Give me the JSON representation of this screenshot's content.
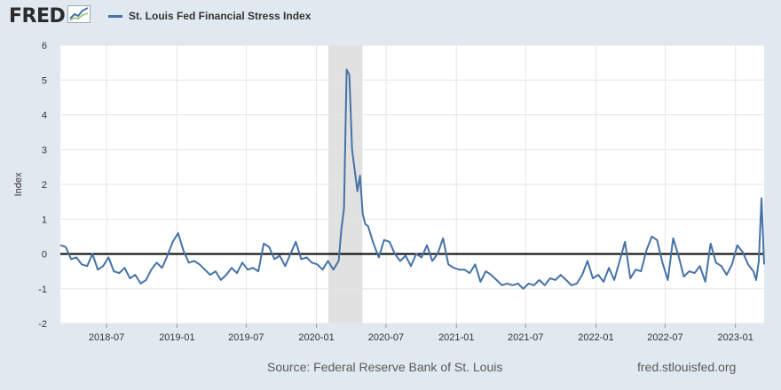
{
  "header": {
    "logo_text": "FRED",
    "logo_icon": "line-chart-icon",
    "legend_label": "St. Louis Fed Financial Stress Index"
  },
  "footer": {
    "source": "Source: Federal Reserve Bank of St. Louis",
    "url": "fred.stlouisfed.org"
  },
  "colors": {
    "background": "#e1e9f0",
    "plot_background": "#ffffff",
    "series": "#4572a7",
    "recession_shade": "#e1e1e1",
    "zero_line": "#000000"
  },
  "chart_data": {
    "type": "line",
    "title": "",
    "xlabel": "",
    "ylabel": "Index",
    "ylim": [
      -2,
      6
    ],
    "yticks": [
      "6",
      "5",
      "4",
      "3",
      "2",
      "1",
      "0",
      "-1",
      "-2"
    ],
    "xlim": [
      "2018-03-02",
      "2023-03-17"
    ],
    "xticks": [
      {
        "label": "2018-07",
        "date": "2018-07-01"
      },
      {
        "label": "2019-01",
        "date": "2019-01-01"
      },
      {
        "label": "2019-07",
        "date": "2019-07-01"
      },
      {
        "label": "2020-01",
        "date": "2020-01-01"
      },
      {
        "label": "2020-07",
        "date": "2020-07-01"
      },
      {
        "label": "2021-01",
        "date": "2021-01-01"
      },
      {
        "label": "2021-07",
        "date": "2021-07-01"
      },
      {
        "label": "2022-01",
        "date": "2022-01-01"
      },
      {
        "label": "2022-07",
        "date": "2022-07-01"
      },
      {
        "label": "2023-01",
        "date": "2023-01-01"
      }
    ],
    "grid": true,
    "reference_line": 0,
    "recession": {
      "start": "2020-02-01",
      "end": "2020-04-30"
    },
    "series": [
      {
        "name": "St. Louis Fed Financial Stress Index",
        "points": [
          [
            "2018-03-02",
            0.25
          ],
          [
            "2018-03-16",
            0.2
          ],
          [
            "2018-03-30",
            -0.15
          ],
          [
            "2018-04-13",
            -0.1
          ],
          [
            "2018-04-27",
            -0.3
          ],
          [
            "2018-05-11",
            -0.35
          ],
          [
            "2018-05-25",
            0.0
          ],
          [
            "2018-06-08",
            -0.45
          ],
          [
            "2018-06-22",
            -0.35
          ],
          [
            "2018-07-06",
            -0.1
          ],
          [
            "2018-07-20",
            -0.5
          ],
          [
            "2018-08-03",
            -0.55
          ],
          [
            "2018-08-17",
            -0.4
          ],
          [
            "2018-08-31",
            -0.7
          ],
          [
            "2018-09-14",
            -0.6
          ],
          [
            "2018-09-28",
            -0.85
          ],
          [
            "2018-10-12",
            -0.75
          ],
          [
            "2018-10-26",
            -0.45
          ],
          [
            "2018-11-09",
            -0.25
          ],
          [
            "2018-11-23",
            -0.4
          ],
          [
            "2018-12-07",
            -0.05
          ],
          [
            "2018-12-21",
            0.35
          ],
          [
            "2019-01-04",
            0.6
          ],
          [
            "2019-01-18",
            0.1
          ],
          [
            "2019-02-01",
            -0.25
          ],
          [
            "2019-02-15",
            -0.2
          ],
          [
            "2019-03-01",
            -0.3
          ],
          [
            "2019-03-15",
            -0.45
          ],
          [
            "2019-03-29",
            -0.6
          ],
          [
            "2019-04-12",
            -0.5
          ],
          [
            "2019-04-26",
            -0.75
          ],
          [
            "2019-05-10",
            -0.6
          ],
          [
            "2019-05-24",
            -0.4
          ],
          [
            "2019-06-07",
            -0.55
          ],
          [
            "2019-06-21",
            -0.25
          ],
          [
            "2019-07-05",
            -0.45
          ],
          [
            "2019-07-19",
            -0.4
          ],
          [
            "2019-08-02",
            -0.5
          ],
          [
            "2019-08-16",
            0.3
          ],
          [
            "2019-08-30",
            0.2
          ],
          [
            "2019-09-13",
            -0.15
          ],
          [
            "2019-09-27",
            -0.05
          ],
          [
            "2019-10-11",
            -0.35
          ],
          [
            "2019-10-25",
            0.0
          ],
          [
            "2019-11-08",
            0.35
          ],
          [
            "2019-11-22",
            -0.15
          ],
          [
            "2019-12-06",
            -0.1
          ],
          [
            "2019-12-20",
            -0.25
          ],
          [
            "2020-01-03",
            -0.3
          ],
          [
            "2020-01-17",
            -0.45
          ],
          [
            "2020-01-31",
            -0.2
          ],
          [
            "2020-02-14",
            -0.45
          ],
          [
            "2020-02-28",
            -0.2
          ],
          [
            "2020-03-06",
            0.7
          ],
          [
            "2020-03-13",
            1.3
          ],
          [
            "2020-03-20",
            5.3
          ],
          [
            "2020-03-27",
            5.15
          ],
          [
            "2020-04-03",
            3.0
          ],
          [
            "2020-04-10",
            2.4
          ],
          [
            "2020-04-17",
            1.8
          ],
          [
            "2020-04-24",
            2.25
          ],
          [
            "2020-05-01",
            1.15
          ],
          [
            "2020-05-08",
            0.85
          ],
          [
            "2020-05-15",
            0.8
          ],
          [
            "2020-05-29",
            0.3
          ],
          [
            "2020-06-12",
            -0.1
          ],
          [
            "2020-06-26",
            0.4
          ],
          [
            "2020-07-10",
            0.35
          ],
          [
            "2020-07-24",
            0.0
          ],
          [
            "2020-08-07",
            -0.2
          ],
          [
            "2020-08-21",
            -0.05
          ],
          [
            "2020-09-04",
            -0.35
          ],
          [
            "2020-09-18",
            0.0
          ],
          [
            "2020-10-02",
            -0.1
          ],
          [
            "2020-10-16",
            0.25
          ],
          [
            "2020-10-30",
            -0.2
          ],
          [
            "2020-11-13",
            0.0
          ],
          [
            "2020-11-27",
            0.45
          ],
          [
            "2020-12-11",
            -0.3
          ],
          [
            "2020-12-25",
            -0.4
          ],
          [
            "2021-01-08",
            -0.45
          ],
          [
            "2021-01-22",
            -0.45
          ],
          [
            "2021-02-05",
            -0.55
          ],
          [
            "2021-02-19",
            -0.3
          ],
          [
            "2021-03-05",
            -0.8
          ],
          [
            "2021-03-19",
            -0.5
          ],
          [
            "2021-04-02",
            -0.6
          ],
          [
            "2021-04-16",
            -0.75
          ],
          [
            "2021-04-30",
            -0.9
          ],
          [
            "2021-05-14",
            -0.85
          ],
          [
            "2021-05-28",
            -0.9
          ],
          [
            "2021-06-11",
            -0.85
          ],
          [
            "2021-06-25",
            -1.0
          ],
          [
            "2021-07-09",
            -0.85
          ],
          [
            "2021-07-23",
            -0.9
          ],
          [
            "2021-08-06",
            -0.75
          ],
          [
            "2021-08-20",
            -0.9
          ],
          [
            "2021-09-03",
            -0.7
          ],
          [
            "2021-09-17",
            -0.75
          ],
          [
            "2021-10-01",
            -0.6
          ],
          [
            "2021-10-15",
            -0.75
          ],
          [
            "2021-10-29",
            -0.9
          ],
          [
            "2021-11-12",
            -0.85
          ],
          [
            "2021-11-26",
            -0.6
          ],
          [
            "2021-12-10",
            -0.2
          ],
          [
            "2021-12-24",
            -0.7
          ],
          [
            "2022-01-07",
            -0.6
          ],
          [
            "2022-01-21",
            -0.8
          ],
          [
            "2022-02-04",
            -0.4
          ],
          [
            "2022-02-18",
            -0.75
          ],
          [
            "2022-03-04",
            -0.2
          ],
          [
            "2022-03-18",
            0.35
          ],
          [
            "2022-04-01",
            -0.7
          ],
          [
            "2022-04-15",
            -0.45
          ],
          [
            "2022-04-29",
            -0.5
          ],
          [
            "2022-05-13",
            0.1
          ],
          [
            "2022-05-27",
            0.5
          ],
          [
            "2022-06-10",
            0.4
          ],
          [
            "2022-06-24",
            -0.25
          ],
          [
            "2022-07-08",
            -0.75
          ],
          [
            "2022-07-22",
            0.45
          ],
          [
            "2022-08-05",
            -0.05
          ],
          [
            "2022-08-19",
            -0.65
          ],
          [
            "2022-09-02",
            -0.5
          ],
          [
            "2022-09-16",
            -0.55
          ],
          [
            "2022-09-30",
            -0.35
          ],
          [
            "2022-10-14",
            -0.8
          ],
          [
            "2022-10-28",
            0.3
          ],
          [
            "2022-11-11",
            -0.25
          ],
          [
            "2022-11-25",
            -0.35
          ],
          [
            "2022-12-09",
            -0.6
          ],
          [
            "2022-12-23",
            -0.3
          ],
          [
            "2023-01-06",
            0.25
          ],
          [
            "2023-01-20",
            0.05
          ],
          [
            "2023-02-03",
            -0.3
          ],
          [
            "2023-02-17",
            -0.5
          ],
          [
            "2023-02-24",
            -0.75
          ],
          [
            "2023-03-03",
            -0.2
          ],
          [
            "2023-03-10",
            1.6
          ],
          [
            "2023-03-17",
            -0.3
          ]
        ]
      }
    ]
  }
}
